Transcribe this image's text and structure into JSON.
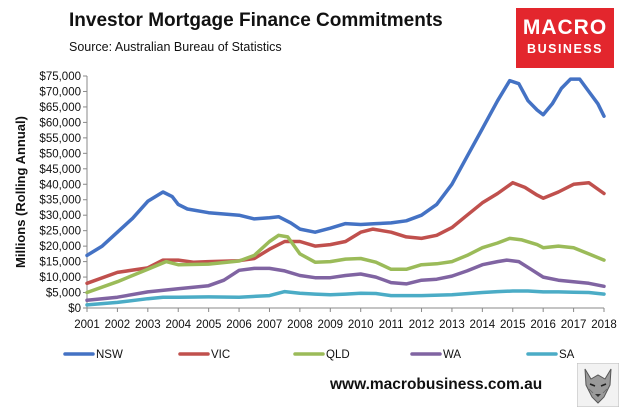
{
  "header": {
    "title": "Investor Mortgage Finance Commitments",
    "subtitle": "Source: Australian Bureau of Statistics"
  },
  "logo": {
    "line1": "MACRO",
    "line2": "BUSINESS"
  },
  "footer": {
    "website": "www.macrobusiness.com.au"
  },
  "chart_data": {
    "type": "line",
    "title": "Investor Mortgage Finance Commitments",
    "ylabel": "Millions (Rolling Annual)",
    "xlabel": "",
    "ylim": [
      0,
      75000
    ],
    "xlim": [
      2001,
      2018
    ],
    "y_ticks": [
      "$0",
      "$5,000",
      "$10,000",
      "$15,000",
      "$20,000",
      "$25,000",
      "$30,000",
      "$35,000",
      "$40,000",
      "$45,000",
      "$50,000",
      "$55,000",
      "$60,000",
      "$65,000",
      "$70,000",
      "$75,000"
    ],
    "x_ticks": [
      "2001",
      "2002",
      "2003",
      "2004",
      "2005",
      "2006",
      "2007",
      "2008",
      "2009",
      "2010",
      "2011",
      "2012",
      "2013",
      "2014",
      "2015",
      "2016",
      "2017",
      "2018"
    ],
    "grid": false,
    "legend_position": "bottom",
    "series": [
      {
        "name": "NSW",
        "color": "#4472c4",
        "x": [
          2001,
          2001.5,
          2002,
          2002.5,
          2003,
          2003.5,
          2003.8,
          2004,
          2004.3,
          2005,
          2006,
          2006.5,
          2007,
          2007.3,
          2007.7,
          2008,
          2008.5,
          2009,
          2009.5,
          2010,
          2010.5,
          2011,
          2011.5,
          2012,
          2012.5,
          2013,
          2013.5,
          2014,
          2014.5,
          2014.9,
          2015.2,
          2015.5,
          2015.8,
          2016,
          2016.3,
          2016.6,
          2016.9,
          2017.2,
          2017.5,
          2017.8,
          2018
        ],
        "values": [
          17000,
          20000,
          24500,
          29000,
          34500,
          37500,
          36000,
          33500,
          32000,
          30800,
          30000,
          28800,
          29200,
          29500,
          27500,
          25500,
          24500,
          25800,
          27300,
          27000,
          27300,
          27500,
          28200,
          30000,
          33500,
          40000,
          49000,
          58000,
          67000,
          73500,
          72500,
          67000,
          64000,
          62500,
          66000,
          71000,
          74000,
          74000,
          70000,
          66000,
          62000
        ]
      },
      {
        "name": "VIC",
        "color": "#c0504d",
        "x": [
          2001,
          2002,
          2003,
          2003.5,
          2004,
          2004.5,
          2005,
          2006,
          2006.5,
          2007,
          2007.5,
          2008,
          2008.5,
          2009,
          2009.5,
          2010,
          2010.4,
          2011,
          2011.5,
          2012,
          2012.5,
          2013,
          2013.5,
          2014,
          2014.5,
          2015,
          2015.4,
          2015.8,
          2016,
          2016.5,
          2017,
          2017.5,
          2018
        ],
        "values": [
          8000,
          11500,
          13000,
          15500,
          15500,
          14800,
          15000,
          15300,
          16000,
          19000,
          21500,
          21500,
          20000,
          20500,
          21500,
          24500,
          25500,
          24500,
          23000,
          22500,
          23500,
          26000,
          30000,
          34000,
          37000,
          40500,
          39000,
          36500,
          35500,
          37500,
          40000,
          40500,
          37000
        ]
      },
      {
        "name": "QLD",
        "color": "#9bbb59",
        "x": [
          2001,
          2002,
          2003,
          2003.6,
          2004,
          2005,
          2006,
          2006.5,
          2007,
          2007.3,
          2007.6,
          2008,
          2008.5,
          2009,
          2009.5,
          2010,
          2010.5,
          2011,
          2011.5,
          2012,
          2012.5,
          2013,
          2013.5,
          2014,
          2014.5,
          2014.9,
          2015.3,
          2015.8,
          2016,
          2016.5,
          2017,
          2017.5,
          2018
        ],
        "values": [
          5000,
          8500,
          12500,
          15000,
          14000,
          14200,
          15200,
          17000,
          21500,
          23500,
          23000,
          17500,
          14800,
          15000,
          15800,
          16000,
          14800,
          12500,
          12500,
          14000,
          14300,
          15000,
          17000,
          19500,
          21000,
          22500,
          22000,
          20500,
          19500,
          20000,
          19500,
          17500,
          15500
        ]
      },
      {
        "name": "WA",
        "color": "#8064a2",
        "x": [
          2001,
          2002,
          2003,
          2004,
          2005,
          2005.5,
          2006,
          2006.5,
          2007,
          2007.5,
          2008,
          2008.5,
          2009,
          2009.5,
          2010,
          2010.5,
          2011,
          2011.5,
          2012,
          2012.5,
          2013,
          2013.5,
          2014,
          2014.5,
          2014.8,
          2015.2,
          2015.6,
          2016,
          2016.5,
          2017,
          2017.5,
          2018
        ],
        "values": [
          2500,
          3500,
          5200,
          6200,
          7200,
          9000,
          12200,
          12800,
          12800,
          12000,
          10500,
          9800,
          9800,
          10500,
          11000,
          10000,
          8200,
          7800,
          9000,
          9300,
          10300,
          12000,
          14000,
          15000,
          15500,
          15000,
          12500,
          10000,
          9000,
          8500,
          8000,
          7000
        ]
      },
      {
        "name": "SA",
        "color": "#4bacc6",
        "x": [
          2001,
          2002,
          2003,
          2003.5,
          2004,
          2005,
          2006,
          2007,
          2007.5,
          2008,
          2008.5,
          2009,
          2009.5,
          2010,
          2010.5,
          2011,
          2012,
          2013,
          2014,
          2014.5,
          2015,
          2015.5,
          2016,
          2016.5,
          2017,
          2017.5,
          2018
        ],
        "values": [
          1000,
          1800,
          3000,
          3500,
          3500,
          3600,
          3500,
          4000,
          5300,
          4800,
          4500,
          4300,
          4500,
          4800,
          4700,
          4000,
          4000,
          4300,
          5000,
          5300,
          5500,
          5500,
          5200,
          5200,
          5100,
          5000,
          4500
        ]
      }
    ]
  }
}
